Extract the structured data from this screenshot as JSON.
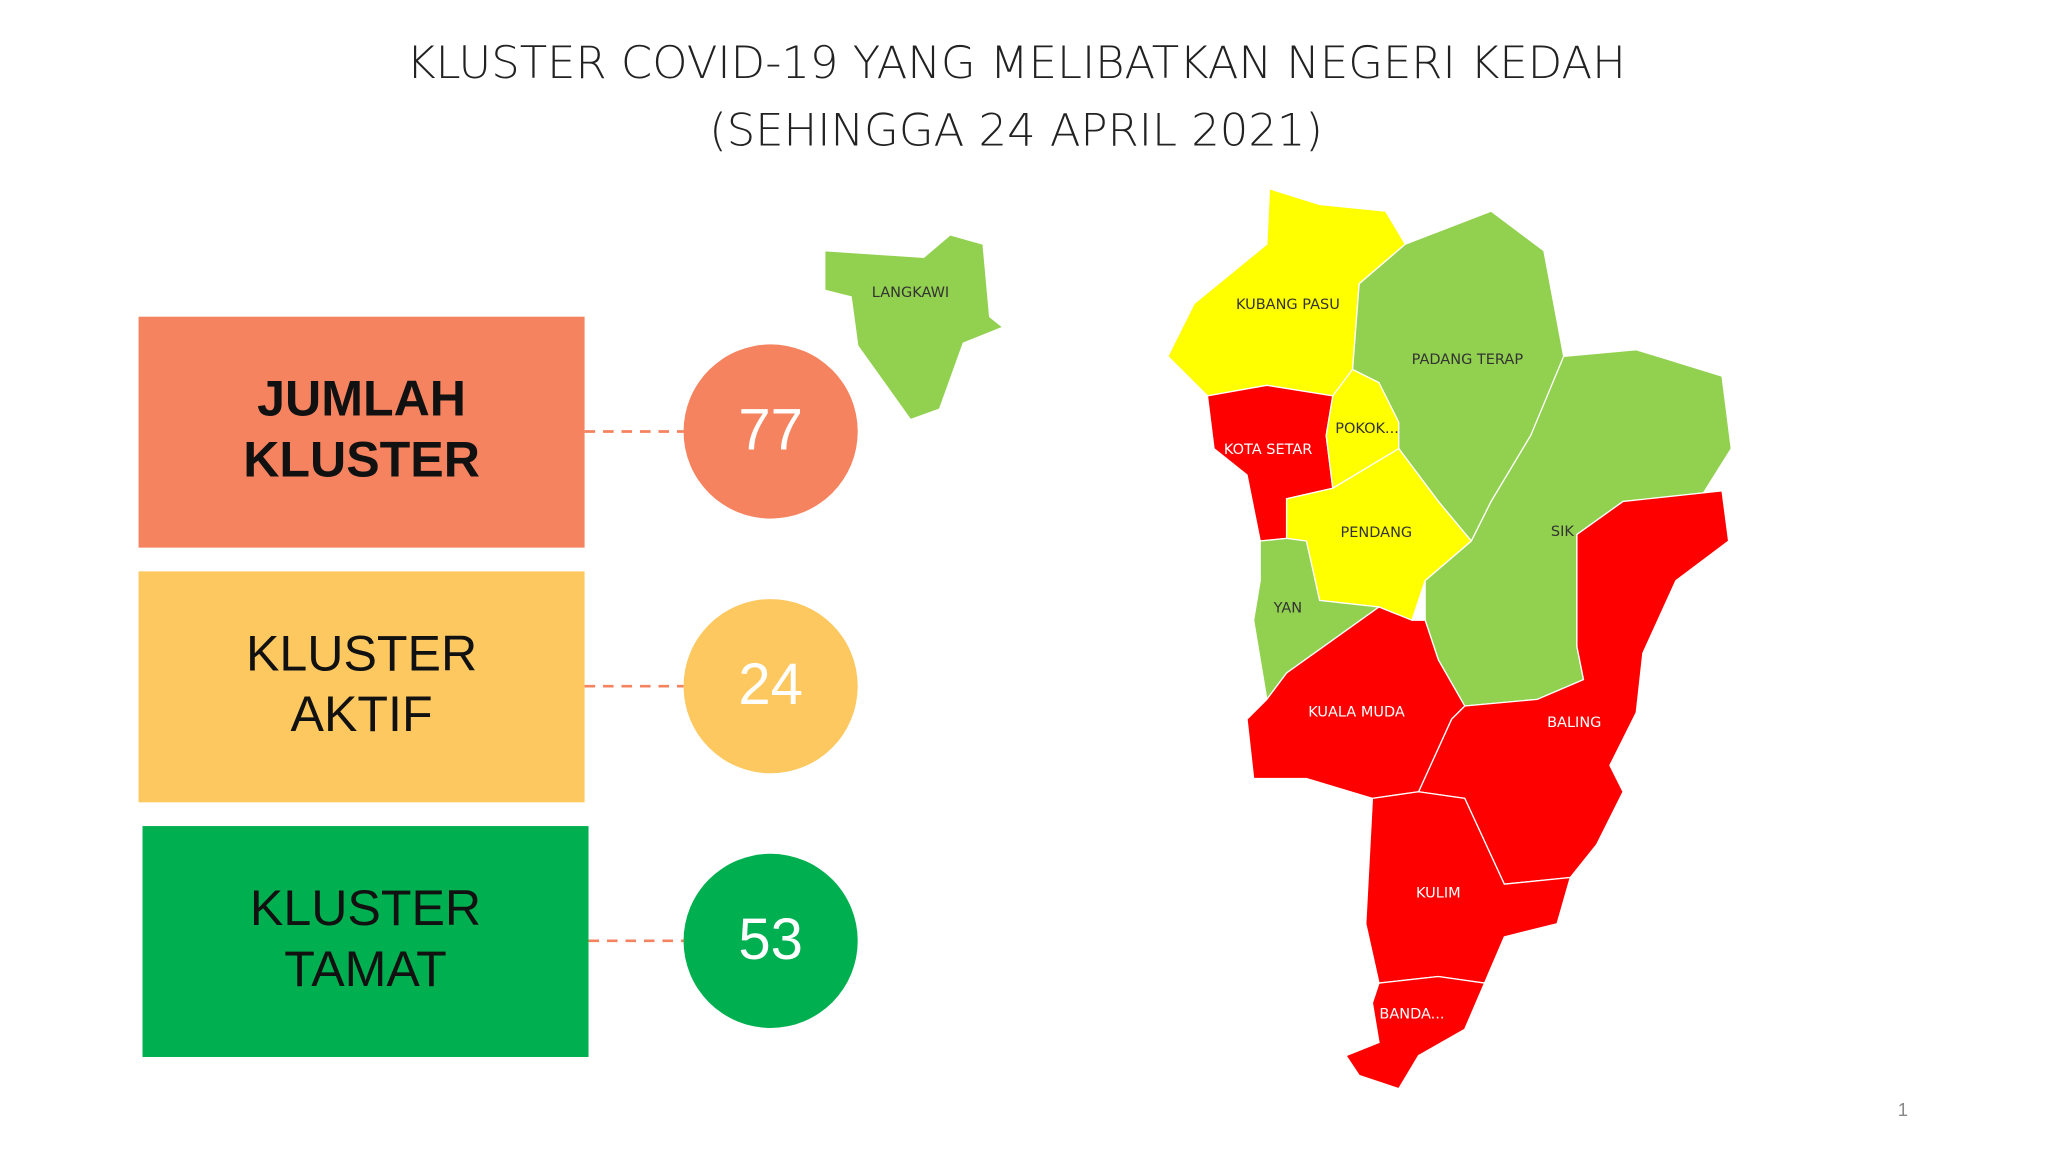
{
  "header": {
    "title_lines": [
      "KLUSTER COVID-19 YANG MELIBATKAN  NEGERI KEDAH",
      "(SEHINGGA 24 APRIL 2021)"
    ]
  },
  "summary": [
    {
      "label_lines": [
        "JUMLAH",
        "KLUSTER"
      ],
      "value": "77",
      "color": "#f5835f",
      "bold": true
    },
    {
      "label_lines": [
        "KLUSTER",
        "AKTIF"
      ],
      "value": "24",
      "color": "#fcc85f",
      "bold": false
    },
    {
      "label_lines": [
        "KLUSTER",
        "TAMAT"
      ],
      "value": "53",
      "color": "#00b050",
      "bold": false
    }
  ],
  "map": {
    "regions": [
      {
        "name": "LANGKAWI",
        "color": "#92d050"
      },
      {
        "name": "KUBANG PASU",
        "color": "#ffff00"
      },
      {
        "name": "PADANG TERAP",
        "color": "#92d050"
      },
      {
        "name": "KOTA SETAR",
        "color": "#ff0000"
      },
      {
        "name": "POKOK...",
        "color": "#ffff00"
      },
      {
        "name": "PENDANG",
        "color": "#ffff00"
      },
      {
        "name": "SIK",
        "color": "#92d050"
      },
      {
        "name": "YAN",
        "color": "#92d050"
      },
      {
        "name": "BALING",
        "color": "#ff0000"
      },
      {
        "name": "KUALA MUDA",
        "color": "#ff0000"
      },
      {
        "name": "KULIM",
        "color": "#ff0000"
      },
      {
        "name": "BANDA...",
        "color": "#ff0000"
      }
    ]
  },
  "footer": {
    "page_number": "1"
  }
}
